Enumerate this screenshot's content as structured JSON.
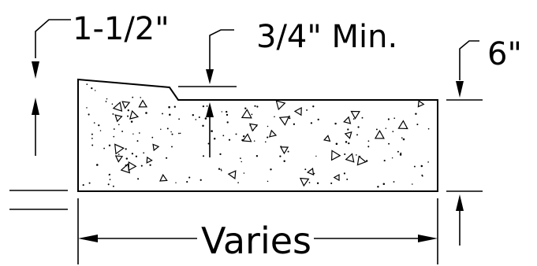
{
  "labels": {
    "edge_thickness": "1-1/2\"",
    "min_depth": "3/4\" Min.",
    "slab_thickness": "6\"",
    "width": "Varies"
  }
}
